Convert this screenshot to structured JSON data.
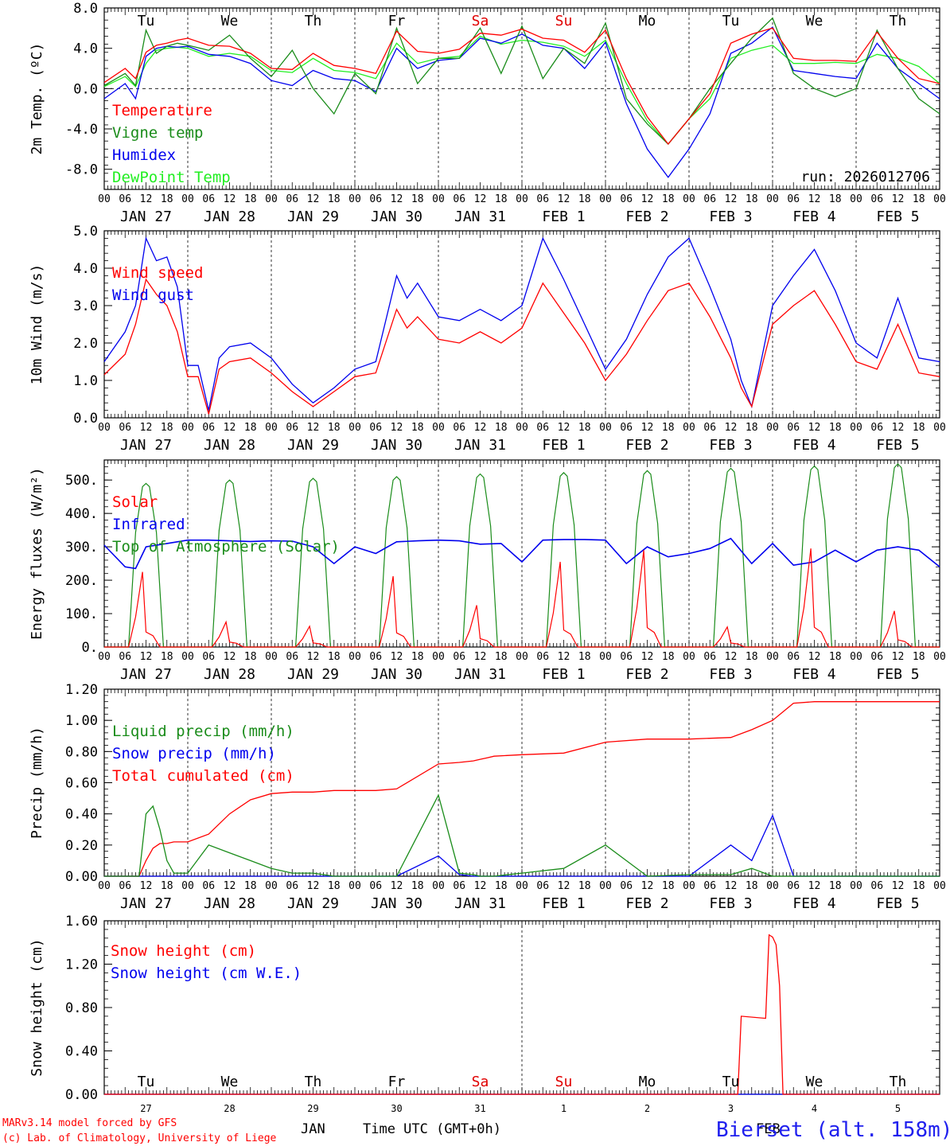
{
  "footer": {
    "model_line": "MARv3.14 model forced by GFS",
    "lab_line": "(c) Lab. of Climatology, University of Liege",
    "station": "Bierset (alt. 158m)",
    "month_left": "JAN",
    "month_right": "FEB",
    "axis_title": "Time UTC (GMT+0h)"
  },
  "time_axis": {
    "hour_labels": [
      "00",
      "06",
      "12",
      "18"
    ],
    "end_label": "00",
    "date_labels": [
      "JAN 27",
      "JAN 28",
      "JAN 29",
      "JAN 30",
      "JAN 31",
      "FEB  1",
      "FEB  2",
      "FEB  3",
      "FEB  4",
      "FEB  5"
    ],
    "weekday_labels": [
      "Tu",
      "We",
      "Th",
      "Fr",
      "Sa",
      "Su",
      "Mo",
      "Tu",
      "We",
      "Th"
    ],
    "weekday_colors": [
      "#000000",
      "#000000",
      "#000000",
      "#000000",
      "#e00000",
      "#e00000",
      "#000000",
      "#000000",
      "#000000",
      "#000000"
    ],
    "day_numbers": [
      "27",
      "28",
      "29",
      "30",
      "31",
      "1",
      "2",
      "3",
      "4",
      "5"
    ],
    "days": 10
  },
  "colors": {
    "red": "#ff0000",
    "green": "#1a8c1a",
    "blue": "#0000ee",
    "light_green": "#22ee22",
    "grid": "#000000"
  },
  "chart_data": [
    {
      "id": "temp",
      "type": "line",
      "ylabel": "2m Temp. (ºC)",
      "ylim": [
        -10,
        8
      ],
      "ticks": [
        8,
        4,
        0,
        -4,
        -8
      ],
      "tick_labels": [
        "8.0",
        "4.0",
        "0.0",
        "-4.0",
        "-8.0"
      ],
      "zero_line": true,
      "show_weekdays": true,
      "run_label": "run: 2026012706",
      "x_hours": [
        0,
        6,
        9,
        12,
        15,
        18,
        21,
        24,
        30,
        36,
        42,
        48,
        54,
        60,
        66,
        72,
        78,
        84,
        90,
        96,
        102,
        108,
        114,
        120,
        126,
        132,
        138,
        144,
        150,
        156,
        162,
        168,
        174,
        180,
        186,
        192,
        198,
        204,
        210,
        216,
        222,
        228,
        234,
        240
      ],
      "series": [
        {
          "name": "Temperature",
          "color_key": "red",
          "values": [
            0.6,
            2.0,
            1.0,
            3.6,
            4.3,
            4.5,
            4.8,
            5.0,
            4.3,
            4.2,
            3.5,
            2.0,
            1.9,
            3.5,
            2.3,
            2.0,
            1.5,
            5.7,
            3.7,
            3.5,
            3.9,
            5.5,
            5.3,
            5.9,
            5.0,
            4.8,
            3.6,
            5.8,
            1.0,
            -2.8,
            -5.5,
            -3.0,
            -0.5,
            4.5,
            5.4,
            6.0,
            3.0,
            2.8,
            2.8,
            2.7,
            5.6,
            3.0,
            1.0,
            0.5
          ]
        },
        {
          "name": "Vigne temp",
          "color_key": "green",
          "values": [
            0.3,
            1.5,
            0.3,
            5.8,
            3.5,
            4.2,
            4.5,
            4.3,
            3.8,
            5.3,
            3.0,
            1.2,
            3.8,
            0.0,
            -2.5,
            1.5,
            -0.5,
            6.0,
            0.5,
            3.0,
            3.0,
            6.0,
            1.5,
            6.2,
            1.0,
            4.0,
            2.5,
            6.5,
            -1.0,
            -3.5,
            -5.5,
            -3.0,
            0.0,
            2.5,
            5.0,
            7.0,
            1.5,
            0.0,
            -0.8,
            0.0,
            5.8,
            2.0,
            -1.0,
            -2.5
          ]
        },
        {
          "name": "Humidex",
          "color_key": "blue",
          "values": [
            -1.0,
            0.5,
            -1.0,
            3.2,
            4.0,
            4.2,
            4.1,
            4.2,
            3.4,
            3.2,
            2.5,
            0.8,
            0.3,
            1.8,
            1.0,
            0.8,
            -0.3,
            4.0,
            2.0,
            2.8,
            3.0,
            5.0,
            4.5,
            5.4,
            4.3,
            4.0,
            2.0,
            4.6,
            -1.5,
            -6.0,
            -8.8,
            -6.0,
            -2.5,
            3.5,
            4.5,
            6.1,
            1.8,
            1.5,
            1.2,
            1.0,
            4.5,
            2.0,
            0.5,
            -1.0
          ]
        },
        {
          "name": "DewPoint Temp",
          "color_key": "light_green",
          "values": [
            0.2,
            1.2,
            0.2,
            2.5,
            3.8,
            4.0,
            4.1,
            4.0,
            3.2,
            3.5,
            3.2,
            1.8,
            1.6,
            3.0,
            1.8,
            1.6,
            1.0,
            4.5,
            2.5,
            3.0,
            3.2,
            5.2,
            4.4,
            4.8,
            4.6,
            4.2,
            3.2,
            4.8,
            0.5,
            -3.2,
            -5.5,
            -3.0,
            -1.0,
            3.0,
            3.8,
            4.3,
            2.5,
            2.5,
            2.6,
            2.5,
            3.4,
            3.0,
            2.2,
            0.5
          ]
        }
      ]
    },
    {
      "id": "wind",
      "type": "line",
      "ylabel": "10m Wind (m/s)",
      "ylim": [
        0,
        5
      ],
      "ticks": [
        5,
        4,
        3,
        2,
        1,
        0
      ],
      "tick_labels": [
        "5.0",
        "4.0",
        "3.0",
        "2.0",
        "1.0",
        "0.0"
      ],
      "show_weekdays": false,
      "x_hours": [
        0,
        6,
        9,
        12,
        15,
        18,
        21,
        24,
        27,
        30,
        33,
        36,
        42,
        48,
        54,
        60,
        66,
        72,
        78,
        84,
        87,
        90,
        96,
        102,
        108,
        114,
        120,
        126,
        132,
        138,
        144,
        150,
        156,
        162,
        168,
        174,
        180,
        183,
        186,
        192,
        198,
        204,
        210,
        216,
        222,
        228,
        234,
        240
      ],
      "series": [
        {
          "name": "Wind speed",
          "color_key": "red",
          "values": [
            1.15,
            1.7,
            2.5,
            3.7,
            3.3,
            3.0,
            2.3,
            1.1,
            1.1,
            0.1,
            1.3,
            1.5,
            1.6,
            1.2,
            0.7,
            0.3,
            0.7,
            1.1,
            1.2,
            2.9,
            2.4,
            2.7,
            2.1,
            2.0,
            2.3,
            2.0,
            2.4,
            3.6,
            2.8,
            2.0,
            1.0,
            1.7,
            2.6,
            3.4,
            3.6,
            2.7,
            1.6,
            0.8,
            0.3,
            2.5,
            3.0,
            3.4,
            2.5,
            1.5,
            1.3,
            2.5,
            1.2,
            1.1
          ]
        },
        {
          "name": "Wind gust",
          "color_key": "blue",
          "values": [
            1.5,
            2.3,
            3.0,
            4.8,
            4.2,
            4.3,
            3.5,
            1.4,
            1.4,
            0.2,
            1.6,
            1.9,
            2.0,
            1.6,
            0.9,
            0.4,
            0.8,
            1.3,
            1.5,
            3.8,
            3.2,
            3.6,
            2.7,
            2.6,
            2.9,
            2.6,
            3.0,
            4.8,
            3.7,
            2.5,
            1.3,
            2.1,
            3.3,
            4.3,
            4.8,
            3.5,
            2.1,
            1.0,
            0.3,
            3.0,
            3.8,
            4.5,
            3.4,
            2.0,
            1.6,
            3.2,
            1.6,
            1.5
          ]
        }
      ]
    },
    {
      "id": "energy",
      "type": "line",
      "ylabel": "Energy fluxes (W/m²)",
      "ylim": [
        0,
        560
      ],
      "ticks": [
        500,
        400,
        300,
        200,
        100,
        0
      ],
      "tick_labels": [
        "500.",
        "400.",
        "300.",
        "200.",
        "100.",
        "0."
      ],
      "show_weekdays": false,
      "solar_peaks": [
        225,
        75,
        62,
        212,
        125,
        255,
        290,
        60,
        295,
        108
      ],
      "toa_peaks": [
        490,
        500,
        505,
        510,
        518,
        522,
        528,
        535,
        542,
        548
      ],
      "infrared_x_hours": [
        0,
        6,
        9,
        12,
        18,
        24,
        30,
        36,
        42,
        48,
        54,
        60,
        66,
        72,
        78,
        84,
        90,
        96,
        102,
        108,
        114,
        120,
        126,
        132,
        138,
        144,
        150,
        156,
        162,
        168,
        174,
        180,
        186,
        192,
        198,
        204,
        210,
        216,
        222,
        228,
        234,
        240
      ],
      "infrared_values": [
        305,
        240,
        235,
        300,
        310,
        320,
        320,
        318,
        316,
        318,
        317,
        300,
        250,
        300,
        280,
        315,
        318,
        320,
        318,
        308,
        310,
        255,
        320,
        322,
        322,
        320,
        250,
        300,
        270,
        280,
        295,
        325,
        250,
        310,
        245,
        255,
        290,
        255,
        290,
        300,
        290,
        240
      ],
      "series": [
        {
          "name": "Solar",
          "color_key": "red"
        },
        {
          "name": "Infrared",
          "color_key": "blue"
        },
        {
          "name": "Top of Atmosphere (Solar)",
          "color_key": "green"
        }
      ]
    },
    {
      "id": "precip",
      "type": "line",
      "ylabel": "Precip (mm/h)",
      "ylim": [
        0,
        1.2
      ],
      "ticks": [
        1.2,
        1.0,
        0.8,
        0.6,
        0.4,
        0.2,
        0.0
      ],
      "tick_labels": [
        "1.20",
        "1.00",
        "0.80",
        "0.60",
        "0.40",
        "0.20",
        "0.00"
      ],
      "show_weekdays": false,
      "x_hours": [
        0,
        10,
        12,
        14,
        16,
        18,
        20,
        24,
        30,
        36,
        42,
        48,
        54,
        60,
        66,
        72,
        78,
        84,
        96,
        102,
        106,
        108,
        110,
        112,
        120,
        132,
        144,
        156,
        168,
        180,
        186,
        192,
        198,
        204,
        210,
        216,
        222,
        228,
        234,
        240
      ],
      "series": [
        {
          "name": "Liquid precip (mm/h)",
          "color_key": "green",
          "values": [
            0,
            0,
            0.4,
            0.45,
            0.3,
            0.1,
            0.02,
            0.02,
            0.2,
            0.15,
            0.1,
            0.05,
            0.02,
            0.02,
            0,
            0,
            0,
            0,
            0.52,
            0.02,
            0.01,
            0,
            0,
            0,
            0.02,
            0.05,
            0.2,
            0,
            0.01,
            0.01,
            0.05,
            0,
            0,
            0,
            0,
            0,
            0,
            0,
            0,
            0
          ]
        },
        {
          "name": "Snow precip (mm/h)",
          "color_key": "blue",
          "values": [
            0,
            0,
            0,
            0,
            0,
            0,
            0,
            0,
            0,
            0,
            0,
            0,
            0,
            0,
            0,
            0,
            0,
            0,
            0.13,
            0.01,
            0,
            0,
            0,
            0,
            0,
            0,
            0,
            0,
            0,
            0.2,
            0.1,
            0.39,
            0,
            0,
            0,
            0,
            0,
            0,
            0,
            0
          ]
        },
        {
          "name": "Total cumulated (cm)",
          "color_key": "red",
          "values": [
            0,
            0,
            0.1,
            0.18,
            0.21,
            0.21,
            0.22,
            0.22,
            0.27,
            0.4,
            0.49,
            0.53,
            0.54,
            0.54,
            0.55,
            0.55,
            0.55,
            0.56,
            0.72,
            0.73,
            0.74,
            0.75,
            0.76,
            0.77,
            0.78,
            0.79,
            0.86,
            0.88,
            0.88,
            0.89,
            0.94,
            1.0,
            1.11,
            1.12,
            1.12,
            1.12,
            1.12,
            1.12,
            1.12,
            1.12
          ]
        }
      ]
    },
    {
      "id": "snow",
      "type": "line",
      "ylabel": "Snow height (cm)",
      "ylim": [
        0,
        1.6
      ],
      "ticks": [
        1.6,
        1.2,
        0.8,
        0.4,
        0.0
      ],
      "tick_labels": [
        "1.60",
        "1.20",
        "0.80",
        "0.40",
        "0.00"
      ],
      "show_weekdays": true,
      "x_hours": [
        0,
        182,
        183,
        190,
        191,
        192,
        193,
        194,
        195,
        196,
        240
      ],
      "series": [
        {
          "name": "Snow height (cm)",
          "color_key": "red",
          "values": [
            0,
            0,
            0.72,
            0.7,
            1.47,
            1.45,
            1.38,
            1.0,
            0,
            0,
            0
          ]
        },
        {
          "name": "Snow height (cm W.E.)",
          "color_key": "blue",
          "values": [
            0,
            0,
            0,
            0,
            0,
            0,
            0,
            0,
            0,
            0,
            0
          ]
        }
      ]
    }
  ]
}
